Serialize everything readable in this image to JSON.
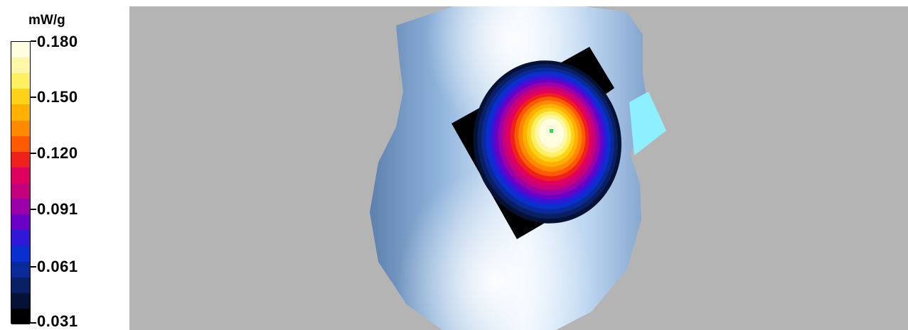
{
  "legend": {
    "unit": "mW/g",
    "ticks": [
      {
        "label": "0.180",
        "value": 0.18
      },
      {
        "label": "0.150",
        "value": 0.15
      },
      {
        "label": "0.120",
        "value": 0.12
      },
      {
        "label": "0.091",
        "value": 0.091
      },
      {
        "label": "0.061",
        "value": 0.061
      },
      {
        "label": "0.031",
        "value": 0.031
      }
    ],
    "colors": [
      "#fffde0",
      "#fff7a8",
      "#fff062",
      "#ffd21a",
      "#ffb000",
      "#ff8a00",
      "#ff5a00",
      "#f0201c",
      "#e00060",
      "#c4007c",
      "#9a00a8",
      "#6a00c6",
      "#2f18d8",
      "#0a2fcf",
      "#0b2a9a",
      "#0a2064",
      "#051236",
      "#000000"
    ]
  },
  "scene": {
    "background_color": "#b4b4b4",
    "phantom_color": "#8fb4dc",
    "scan_area_color": "#000000",
    "hotspot_color": "#fffde0",
    "peak_marker_color": "#22dd55",
    "reference_plate_color": "#8ef0ff"
  }
}
